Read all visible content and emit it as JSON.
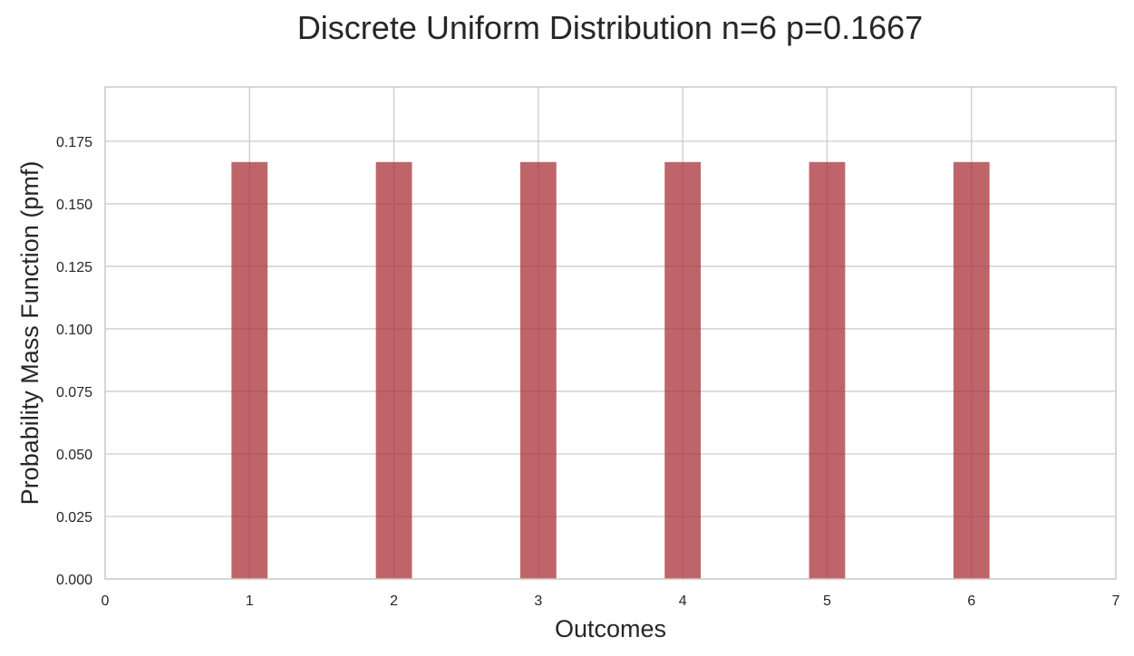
{
  "chart_data": {
    "type": "bar",
    "title": "Discrete Uniform Distribution n=6 p=0.1667",
    "xlabel": "Outcomes",
    "ylabel": "Probability Mass Function (pmf)",
    "x": [
      1,
      2,
      3,
      4,
      5,
      6
    ],
    "values": [
      0.1667,
      0.1667,
      0.1667,
      0.1667,
      0.1667,
      0.1667
    ],
    "bar_width": 0.25,
    "xlim": [
      0,
      7
    ],
    "ylim": [
      0,
      0.1967
    ],
    "xticks": [
      0,
      1,
      2,
      3,
      4,
      5,
      6,
      7
    ],
    "xtick_labels": [
      "0",
      "1",
      "2",
      "3",
      "4",
      "5",
      "6",
      "7"
    ],
    "yticks": [
      0,
      0.025,
      0.05,
      0.075,
      0.1,
      0.125,
      0.15,
      0.175
    ],
    "ytick_labels": [
      "0.000",
      "0.025",
      "0.050",
      "0.075",
      "0.100",
      "0.125",
      "0.150",
      "0.175"
    ],
    "grid": true,
    "colors": {
      "bar": "#a93237",
      "bar_opacity": 0.75,
      "grid": "#cccccc",
      "spine": "#cccccc",
      "text": "#262626"
    }
  }
}
